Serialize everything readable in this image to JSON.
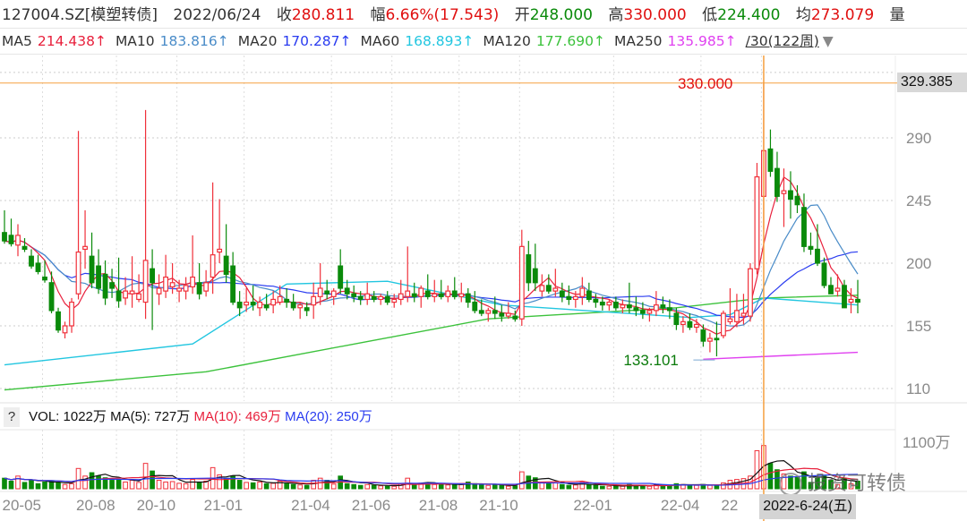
{
  "header": {
    "code": "127004.SZ[模塑转债]",
    "date": "2022/06/24",
    "close_label": "收",
    "close": "280.811",
    "change_label": "幅",
    "change": "6.66%(17.543)",
    "open_label": "开",
    "open": "248.000",
    "high_label": "高",
    "high": "330.000",
    "low_label": "低",
    "low": "224.400",
    "avg_label": "均",
    "avg": "273.079",
    "vol_label": "量"
  },
  "ma_row": {
    "items": [
      {
        "label": "MA5",
        "value": "214.438↑",
        "color": "#e8203c"
      },
      {
        "label": "MA10",
        "value": "183.816↑",
        "color": "#4a8cc8"
      },
      {
        "label": "MA20",
        "value": "170.287↑",
        "color": "#2a3cf0"
      },
      {
        "label": "MA60",
        "value": "168.893↑",
        "color": "#22c6e0"
      },
      {
        "label": "MA120",
        "value": "177.690↑",
        "color": "#3cc23c"
      },
      {
        "label": "MA250",
        "value": "135.985↑",
        "color": "#e040f0"
      }
    ],
    "period": "/30(122周)",
    "dropdown_icon": "triangle-down-icon"
  },
  "volume_header": {
    "help": "?",
    "vol": "VOL: 1022万",
    "ma5": "MA(5): 727万",
    "ma10": "MA(10): 469万",
    "ma20": "MA(20): 250万"
  },
  "colors": {
    "up": "#f0303a",
    "down": "#0a8a0a",
    "crosshair": "#f5a040"
  },
  "chart_data": {
    "type": "candlestick",
    "y_ticks": [
      110,
      155,
      200,
      245,
      290
    ],
    "ylim": [
      101,
      337
    ],
    "volume_tick": "1100万",
    "volume_tick_value": 1100,
    "x_labels": [
      "20-05",
      "20-08",
      "20-10",
      "21-01",
      "21-04",
      "21-06",
      "21-08",
      "21-10",
      "22-01",
      "22-04",
      "22"
    ],
    "x_label_index": [
      3,
      14,
      23,
      33,
      46,
      55,
      65,
      74,
      88,
      101,
      110
    ],
    "selected_index": 113,
    "selected_date": "2022-6-24(五)",
    "crosshair_price": "329.385",
    "max_label": "330.000",
    "min_label": "133.101",
    "min_index": 106,
    "min_value": 133.101,
    "ma60": [
      [
        0,
        127
      ],
      [
        28,
        142
      ],
      [
        42,
        185
      ],
      [
        57,
        187
      ],
      [
        74,
        170
      ],
      [
        102,
        161
      ],
      [
        108,
        163
      ],
      [
        113,
        175
      ],
      [
        127,
        170
      ]
    ],
    "ma120": [
      [
        0,
        109
      ],
      [
        30,
        122
      ],
      [
        72,
        160
      ],
      [
        100,
        168
      ],
      [
        113,
        175
      ],
      [
        127,
        177
      ]
    ],
    "ma250": [
      [
        104,
        131
      ],
      [
        127,
        136
      ]
    ],
    "ohlcv": [
      [
        222,
        238,
        214,
        216,
        250
      ],
      [
        220,
        232,
        212,
        214,
        180
      ],
      [
        213,
        228,
        205,
        220,
        300
      ],
      [
        212,
        218,
        208,
        210,
        150
      ],
      [
        205,
        210,
        196,
        198,
        200
      ],
      [
        200,
        206,
        192,
        194,
        120
      ],
      [
        190,
        202,
        186,
        188,
        160
      ],
      [
        186,
        194,
        164,
        166,
        180
      ],
      [
        165,
        168,
        150,
        152,
        140
      ],
      [
        150,
        158,
        146,
        155,
        100
      ],
      [
        155,
        175,
        150,
        172,
        120
      ],
      [
        178,
        295,
        174,
        208,
        480
      ],
      [
        210,
        238,
        196,
        212,
        300
      ],
      [
        205,
        222,
        182,
        186,
        380
      ],
      [
        198,
        210,
        178,
        182,
        300
      ],
      [
        192,
        202,
        170,
        175,
        260
      ],
      [
        186,
        196,
        175,
        182,
        200
      ],
      [
        180,
        204,
        168,
        173,
        220
      ],
      [
        175,
        190,
        170,
        180,
        160
      ],
      [
        178,
        205,
        168,
        180,
        200
      ],
      [
        174,
        192,
        172,
        178,
        150
      ],
      [
        172,
        310,
        160,
        202,
        600
      ],
      [
        196,
        210,
        152,
        186,
        420
      ],
      [
        178,
        192,
        170,
        182,
        200
      ],
      [
        180,
        206,
        175,
        190,
        160
      ],
      [
        183,
        200,
        178,
        186,
        170
      ],
      [
        180,
        188,
        172,
        182,
        130
      ],
      [
        180,
        190,
        174,
        184,
        120
      ],
      [
        183,
        220,
        178,
        190,
        220
      ],
      [
        186,
        200,
        174,
        178,
        150
      ],
      [
        180,
        195,
        176,
        186,
        180
      ],
      [
        190,
        258,
        178,
        206,
        500
      ],
      [
        208,
        246,
        200,
        210,
        330
      ],
      [
        205,
        228,
        186,
        192,
        250
      ],
      [
        198,
        208,
        170,
        172,
        300
      ],
      [
        172,
        180,
        162,
        168,
        200
      ],
      [
        170,
        182,
        165,
        172,
        150
      ],
      [
        172,
        184,
        166,
        170,
        140
      ],
      [
        168,
        176,
        162,
        172,
        160
      ],
      [
        170,
        178,
        166,
        168,
        120
      ],
      [
        170,
        180,
        164,
        174,
        130
      ],
      [
        172,
        184,
        170,
        176,
        180
      ],
      [
        174,
        182,
        168,
        172,
        120
      ],
      [
        172,
        178,
        166,
        168,
        100
      ],
      [
        168,
        172,
        160,
        170,
        90
      ],
      [
        168,
        172,
        162,
        166,
        80
      ],
      [
        170,
        186,
        160,
        176,
        200
      ],
      [
        176,
        200,
        170,
        182,
        250
      ],
      [
        180,
        188,
        174,
        178,
        200
      ],
      [
        176,
        182,
        170,
        180,
        110
      ],
      [
        198,
        210,
        178,
        182,
        300
      ],
      [
        182,
        188,
        174,
        178,
        120
      ],
      [
        178,
        184,
        172,
        176,
        100
      ],
      [
        176,
        180,
        170,
        174,
        80
      ],
      [
        174,
        186,
        170,
        178,
        100
      ],
      [
        176,
        180,
        172,
        174,
        80
      ],
      [
        174,
        178,
        170,
        176,
        70
      ],
      [
        176,
        180,
        170,
        172,
        60
      ],
      [
        172,
        178,
        168,
        174,
        60
      ],
      [
        174,
        188,
        170,
        178,
        120
      ],
      [
        176,
        212,
        172,
        180,
        250
      ],
      [
        178,
        186,
        172,
        176,
        110
      ],
      [
        176,
        184,
        168,
        182,
        120
      ],
      [
        180,
        192,
        174,
        176,
        140
      ],
      [
        176,
        188,
        172,
        178,
        100
      ],
      [
        178,
        188,
        174,
        176,
        100
      ],
      [
        176,
        184,
        172,
        180,
        90
      ],
      [
        180,
        190,
        174,
        176,
        110
      ],
      [
        176,
        186,
        172,
        178,
        100
      ],
      [
        178,
        182,
        168,
        172,
        160
      ],
      [
        172,
        180,
        164,
        166,
        120
      ],
      [
        166,
        174,
        162,
        164,
        90
      ],
      [
        164,
        168,
        158,
        166,
        80
      ],
      [
        166,
        176,
        160,
        164,
        100
      ],
      [
        164,
        170,
        158,
        162,
        80
      ],
      [
        162,
        172,
        160,
        164,
        60
      ],
      [
        162,
        166,
        158,
        160,
        70
      ],
      [
        160,
        224,
        155,
        212,
        400
      ],
      [
        206,
        216,
        180,
        186,
        300
      ],
      [
        196,
        214,
        180,
        186,
        260
      ],
      [
        180,
        192,
        176,
        184,
        150
      ],
      [
        184,
        192,
        178,
        180,
        120
      ],
      [
        180,
        196,
        176,
        182,
        140
      ],
      [
        180,
        186,
        172,
        176,
        100
      ],
      [
        176,
        184,
        170,
        174,
        80
      ],
      [
        174,
        180,
        168,
        176,
        90
      ],
      [
        176,
        190,
        170,
        182,
        150
      ],
      [
        180,
        186,
        172,
        174,
        100
      ],
      [
        174,
        178,
        168,
        172,
        80
      ],
      [
        172,
        176,
        166,
        170,
        60
      ],
      [
        170,
        174,
        166,
        172,
        60
      ],
      [
        172,
        176,
        166,
        168,
        70
      ],
      [
        168,
        174,
        164,
        170,
        60
      ],
      [
        170,
        186,
        164,
        168,
        100
      ],
      [
        168,
        176,
        162,
        166,
        70
      ],
      [
        166,
        172,
        160,
        164,
        80
      ],
      [
        164,
        168,
        158,
        166,
        60
      ],
      [
        166,
        180,
        162,
        170,
        100
      ],
      [
        170,
        176,
        164,
        168,
        80
      ],
      [
        168,
        174,
        160,
        166,
        90
      ],
      [
        164,
        168,
        152,
        156,
        120
      ],
      [
        156,
        162,
        150,
        158,
        100
      ],
      [
        158,
        164,
        152,
        154,
        90
      ],
      [
        154,
        160,
        150,
        156,
        80
      ],
      [
        152,
        156,
        140,
        144,
        100
      ],
      [
        144,
        150,
        136,
        146,
        80
      ],
      [
        146,
        158,
        133.101,
        145,
        90
      ],
      [
        148,
        166,
        146,
        164,
        140
      ],
      [
        158,
        182,
        156,
        160,
        200
      ],
      [
        158,
        178,
        154,
        166,
        220
      ],
      [
        162,
        178,
        156,
        164,
        240
      ],
      [
        162,
        200,
        158,
        196,
        300
      ],
      [
        196,
        272,
        192,
        262,
        900
      ],
      [
        248,
        330,
        224.4,
        280.811,
        1022
      ],
      [
        282,
        296,
        262,
        266,
        600
      ],
      [
        268,
        280,
        244,
        248,
        450
      ],
      [
        250,
        268,
        226,
        252,
        350
      ],
      [
        252,
        266,
        232,
        246,
        300
      ],
      [
        248,
        256,
        236,
        242,
        280
      ],
      [
        240,
        250,
        208,
        212,
        400
      ],
      [
        212,
        222,
        206,
        210,
        150
      ],
      [
        210,
        228,
        198,
        200,
        250
      ],
      [
        200,
        204,
        182,
        184,
        300
      ],
      [
        184,
        190,
        178,
        178,
        200
      ],
      [
        180,
        192,
        176,
        182,
        100
      ],
      [
        184,
        188,
        168,
        168,
        250
      ],
      [
        172,
        182,
        164,
        174,
        120
      ],
      [
        174,
        188,
        164,
        172,
        180
      ]
    ]
  },
  "watermark": "投资可转债"
}
